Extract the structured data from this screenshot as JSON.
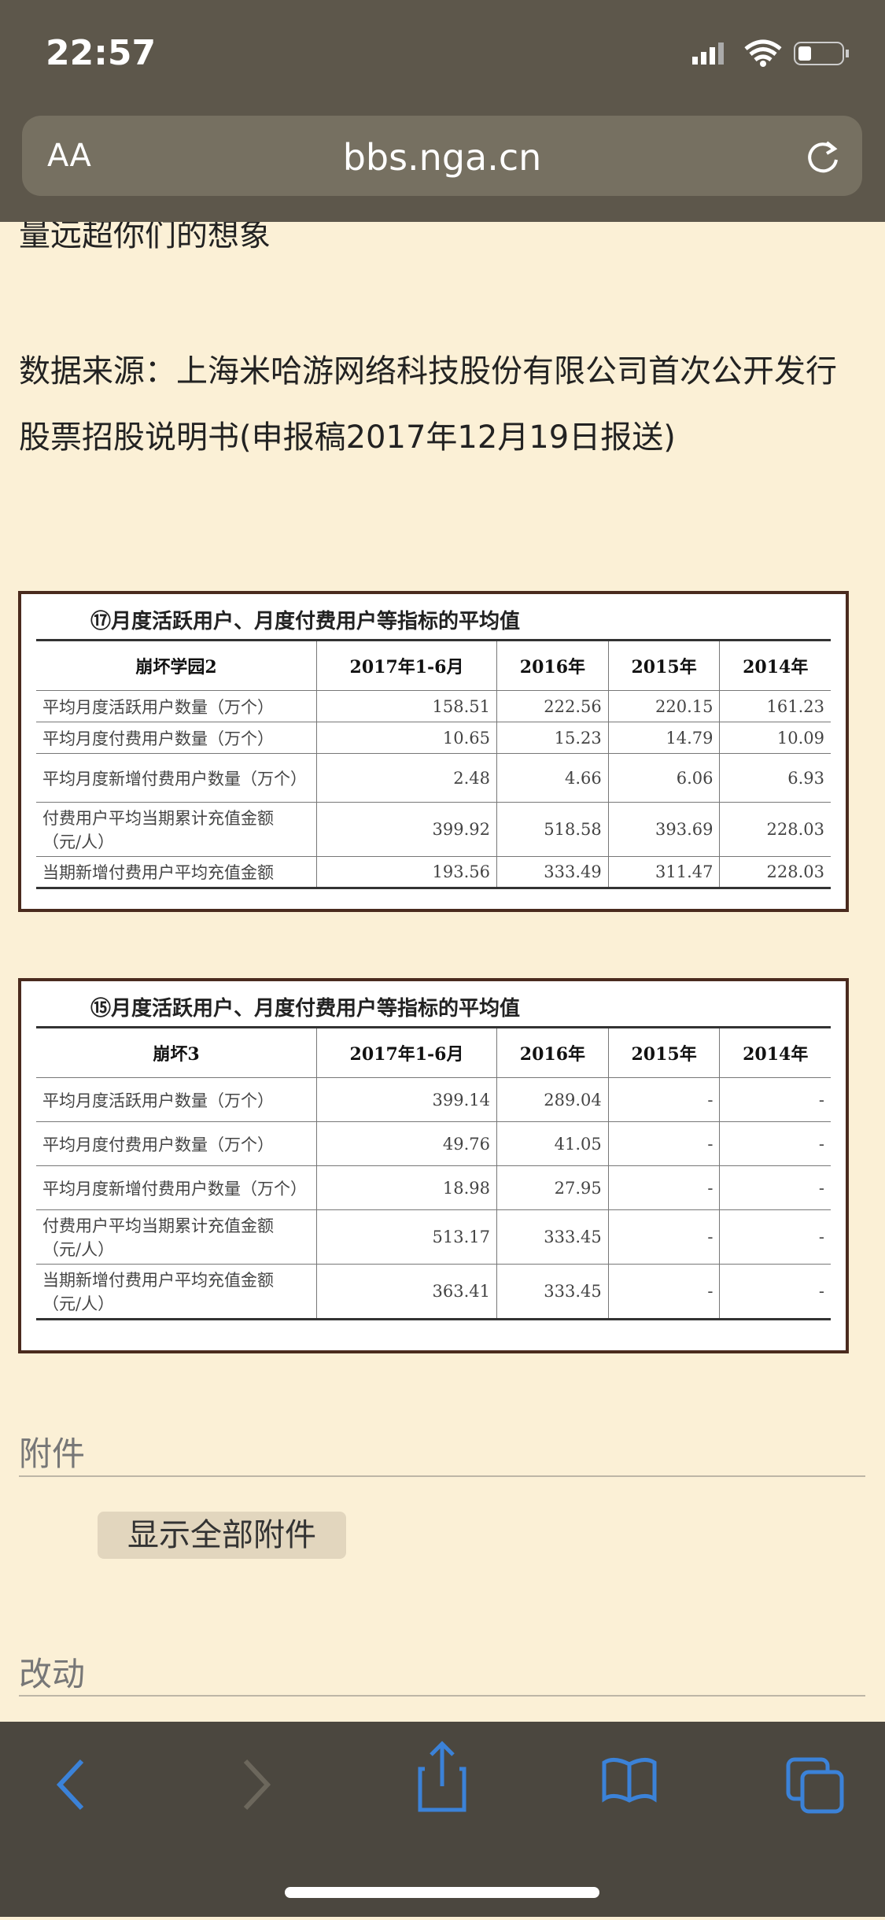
{
  "status_bar": {
    "time": "22:57"
  },
  "address_bar": {
    "text_size": "AA",
    "url": "bbs.nga.cn"
  },
  "article": {
    "clipped_line": "量远超你们的想象",
    "source": "数据来源：上海米哈游网络科技股份有限公司首次公开发行股票招股说明书(申报稿2017年12月19日报送)"
  },
  "tables": [
    {
      "title": "⑰月度活跃用户、月度付费用户等指标的平均值",
      "header": [
        "崩坏学园2",
        "2017年1-6月",
        "2016年",
        "2015年",
        "2014年"
      ],
      "rows": [
        [
          "平均月度活跃用户数量（万个）",
          "158.51",
          "222.56",
          "220.15",
          "161.23"
        ],
        [
          "平均月度付费用户数量（万个）",
          "10.65",
          "15.23",
          "14.79",
          "10.09"
        ],
        [
          "平均月度新增付费用户数量（万个）",
          "2.48",
          "4.66",
          "6.06",
          "6.93"
        ],
        [
          "付费用户平均当期累计充值金额（元/人）",
          "399.92",
          "518.58",
          "393.69",
          "228.03"
        ],
        [
          "当期新增付费用户平均充值金额",
          "193.56",
          "333.49",
          "311.47",
          "228.03"
        ]
      ]
    },
    {
      "title": "⑮月度活跃用户、月度付费用户等指标的平均值",
      "header": [
        "崩坏3",
        "2017年1-6月",
        "2016年",
        "2015年",
        "2014年"
      ],
      "rows": [
        [
          "平均月度活跃用户数量（万个）",
          "399.14",
          "289.04",
          "-",
          "-"
        ],
        [
          "平均月度付费用户数量（万个）",
          "49.76",
          "41.05",
          "-",
          "-"
        ],
        [
          "平均月度新增付费用户数量（万个）",
          "18.98",
          "27.95",
          "-",
          "-"
        ],
        [
          "付费用户平均当期累计充值金额（元/人）",
          "513.17",
          "333.45",
          "-",
          "-"
        ],
        [
          "当期新增付费用户平均充值金额（元/人）",
          "363.41",
          "333.45",
          "-",
          "-"
        ]
      ]
    }
  ],
  "attachments": {
    "heading": "附件",
    "button": "显示全部附件"
  },
  "changes": {
    "heading": "改动"
  }
}
